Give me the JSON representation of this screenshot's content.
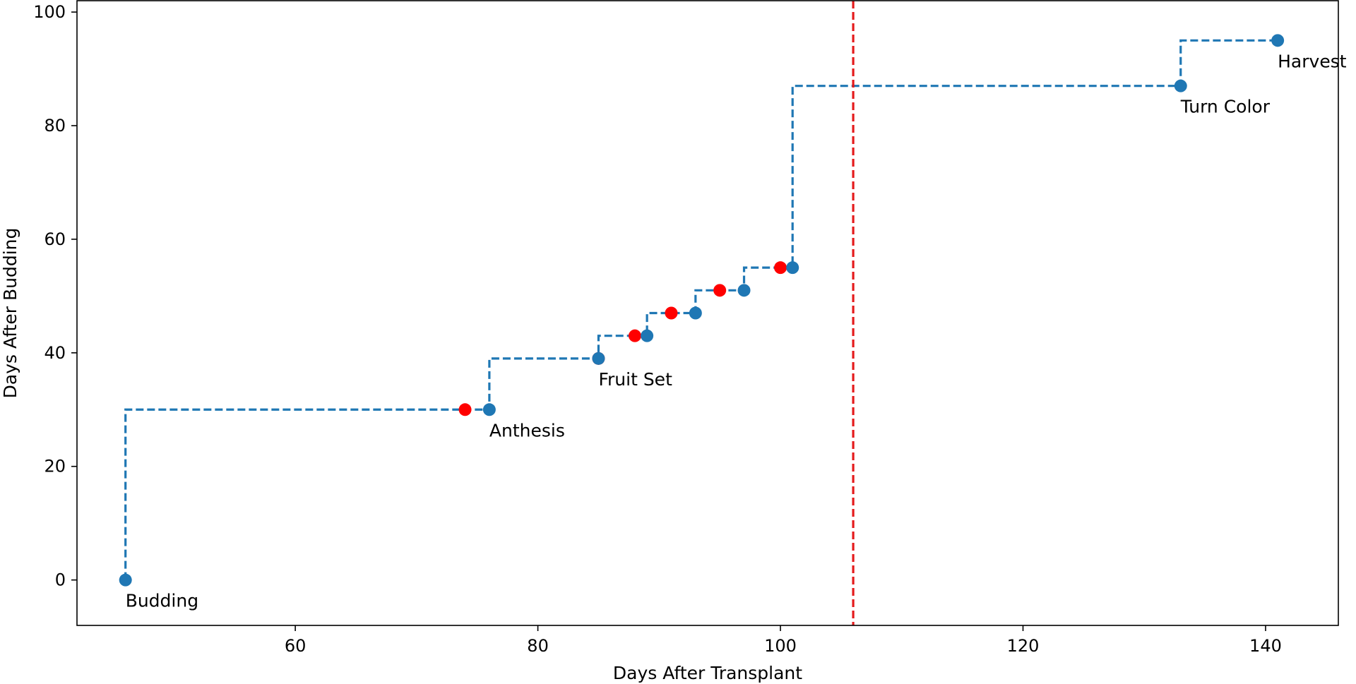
{
  "chart_data": {
    "type": "line",
    "xlabel": "Days After Transplant",
    "ylabel": "Days After Budding",
    "xlim": [
      42,
      146
    ],
    "ylim": [
      -8,
      102
    ],
    "xticks": [
      60,
      80,
      100,
      120,
      140
    ],
    "yticks": [
      0,
      20,
      40,
      60,
      80,
      100
    ],
    "grid": false,
    "series": [
      {
        "style": "steps-post dashed with markers",
        "color": "#1f77b4",
        "x": [
          46,
          76,
          85,
          89,
          93,
          97,
          101,
          133,
          141
        ],
        "y": [
          0,
          30,
          39,
          43,
          47,
          51,
          55,
          87,
          95
        ]
      },
      {
        "style": "markers",
        "color": "#ff0000",
        "x": [
          74,
          85,
          88,
          91,
          95,
          100
        ],
        "y": [
          30,
          39,
          43,
          47,
          51,
          55
        ]
      }
    ],
    "reference_line": {
      "orientation": "vertical",
      "x": 106,
      "color": "#e41a1c",
      "style": "dashed"
    },
    "annotations": [
      {
        "text": "Budding",
        "x": 46,
        "y": 0
      },
      {
        "text": "Anthesis",
        "x": 76,
        "y": 30
      },
      {
        "text": "Fruit Set",
        "x": 85,
        "y": 39
      },
      {
        "text": "Turn Color",
        "x": 133,
        "y": 87
      },
      {
        "text": "Harvest",
        "x": 141,
        "y": 95
      }
    ]
  }
}
